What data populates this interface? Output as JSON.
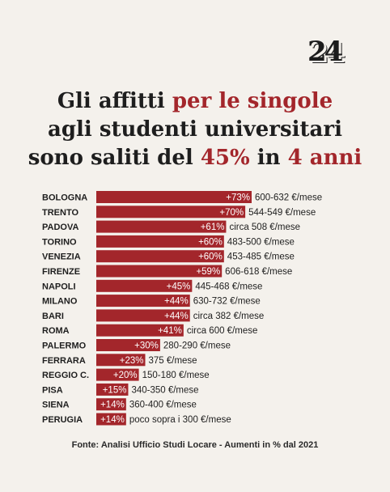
{
  "logo": "24",
  "headline": {
    "line1": {
      "a": "Gli affitti ",
      "b": "per le singole"
    },
    "line2": "agli studenti universitari",
    "line3": {
      "a": "sono saliti del ",
      "b": "45%",
      "c": " in ",
      "d": "4 anni"
    }
  },
  "chart_data": {
    "type": "bar",
    "orientation": "horizontal",
    "bar_color": "#a3262b",
    "label_color": "#ffffff",
    "categories": [
      "BOLOGNA",
      "TRENTO",
      "PADOVA",
      "TORINO",
      "VENEZIA",
      "FIRENZE",
      "NAPOLI",
      "MILANO",
      "BARI",
      "ROMA",
      "PALERMO",
      "FERRARA",
      "REGGIO C.",
      "PISA",
      "SIENA",
      "PERUGIA"
    ],
    "values": [
      73,
      70,
      61,
      60,
      60,
      59,
      45,
      44,
      44,
      41,
      30,
      23,
      20,
      15,
      14,
      14
    ],
    "value_labels": [
      "+73%",
      "+70%",
      "+61%",
      "+60%",
      "+60%",
      "+59%",
      "+45%",
      "+44%",
      "+44%",
      "+41%",
      "+30%",
      "+23%",
      "+20%",
      "+15%",
      "+14%",
      "+14%"
    ],
    "rent_labels": [
      "600-632 €/mese",
      "544-549 €/mese",
      "circa 508 €/mese",
      "483-500 €/mese",
      "453-485 €/mese",
      "606-618 €/mese",
      "445-468 €/mese",
      "630-732 €/mese",
      "circa 382 €/mese",
      "circa 600 €/mese",
      "280-290 €/mese",
      "375 €/mese",
      "150-180 €/mese",
      "340-350 €/mese",
      "360-400 €/mese",
      "poco sopra i 300 €/mese"
    ],
    "xlim": [
      0,
      73
    ]
  },
  "footnote": "Fonte: Analisi Ufficio Studi Locare  - Aumenti in % dal 2021"
}
